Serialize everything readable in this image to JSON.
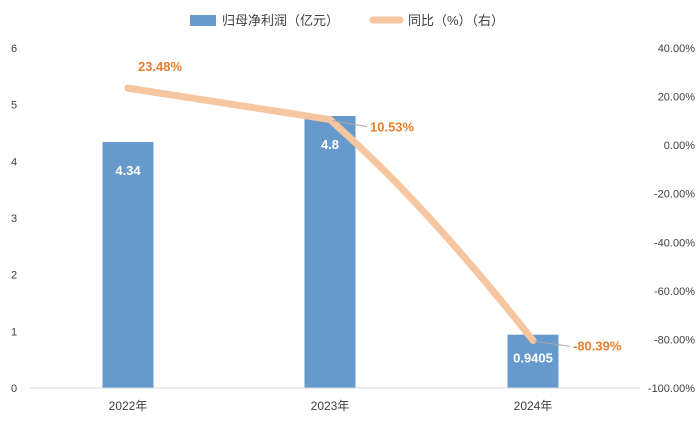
{
  "chart_data": {
    "type": "bar",
    "categories": [
      "2022年",
      "2023年",
      "2024年"
    ],
    "series": [
      {
        "name": "归母净利润（亿元）",
        "type": "bar",
        "axis": "left",
        "values": [
          4.34,
          4.8,
          0.9405
        ],
        "labels": [
          "4.34",
          "4.8",
          "0.9405"
        ],
        "color": "#6699cc"
      },
      {
        "name": "同比（%）（右）",
        "type": "line",
        "axis": "right",
        "values": [
          23.48,
          10.53,
          -80.39
        ],
        "labels": [
          "23.48%",
          "10.53%",
          "-80.39%"
        ],
        "color": "#f6c6a0",
        "label_color": "#e87f2e"
      }
    ],
    "y_left": {
      "lim": [
        0,
        6
      ],
      "ticks": [
        "0",
        "1",
        "2",
        "3",
        "4",
        "5",
        "6"
      ]
    },
    "y_right": {
      "lim": [
        -100,
        40
      ],
      "ticks": [
        "-100.00%",
        "-80.00%",
        "-60.00%",
        "-40.00%",
        "-20.00%",
        "0.00%",
        "20.00%",
        "40.00%"
      ]
    },
    "legend_position": "top-center",
    "grid": false
  }
}
